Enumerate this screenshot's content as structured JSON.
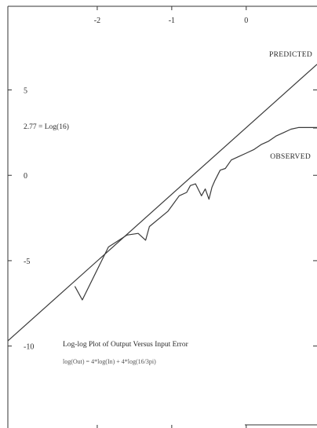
{
  "chart_data": {
    "type": "line",
    "x_ticks": [
      {
        "value": -2,
        "label": "-2"
      },
      {
        "value": -1,
        "label": "-1"
      },
      {
        "value": 0,
        "label": "0"
      }
    ],
    "y_ticks": [
      {
        "value": 5,
        "label": "5"
      },
      {
        "value": 0,
        "label": "0"
      },
      {
        "value": -5,
        "label": "-5"
      },
      {
        "value": -10,
        "label": "-10"
      }
    ],
    "xlim": [
      -3.2,
      0.95
    ],
    "ylim": [
      -14.8,
      9.9
    ],
    "series": [
      {
        "name": "PREDICTED",
        "color": "#3a3a3a",
        "x": [
          -3.2,
          0.95
        ],
        "y": [
          -9.7,
          6.5
        ]
      },
      {
        "name": "OBSERVED",
        "color": "#3a3a3a",
        "x": [
          -2.3,
          -2.2,
          -1.85,
          -1.6,
          -1.45,
          -1.35,
          -1.3,
          -1.05,
          -1.0,
          -0.9,
          -0.8,
          -0.75,
          -0.68,
          -0.6,
          -0.55,
          -0.5,
          -0.46,
          -0.42,
          -0.35,
          -0.28,
          -0.2,
          -0.1,
          0.0,
          0.1,
          0.2,
          0.3,
          0.4,
          0.5,
          0.6,
          0.7,
          0.8,
          0.95
        ],
        "y": [
          -6.5,
          -7.3,
          -4.2,
          -3.5,
          -3.4,
          -3.8,
          -3.0,
          -2.1,
          -1.8,
          -1.2,
          -1.0,
          -0.6,
          -0.5,
          -1.2,
          -0.8,
          -1.4,
          -0.7,
          -0.3,
          0.3,
          0.4,
          0.9,
          1.1,
          1.3,
          1.5,
          1.8,
          2.0,
          2.3,
          2.5,
          2.7,
          2.8,
          2.8,
          2.8
        ]
      }
    ],
    "annotations": {
      "reference_label": "2.77 = Log(16)",
      "reference_value": 2.77,
      "predicted_label": "PREDICTED",
      "observed_label": "OBSERVED",
      "title": "Log-log Plot of Output Versus Input Error",
      "formula": "log(Out) = 4*log(In) + 4*log(16/3pi)"
    },
    "grid": false
  }
}
